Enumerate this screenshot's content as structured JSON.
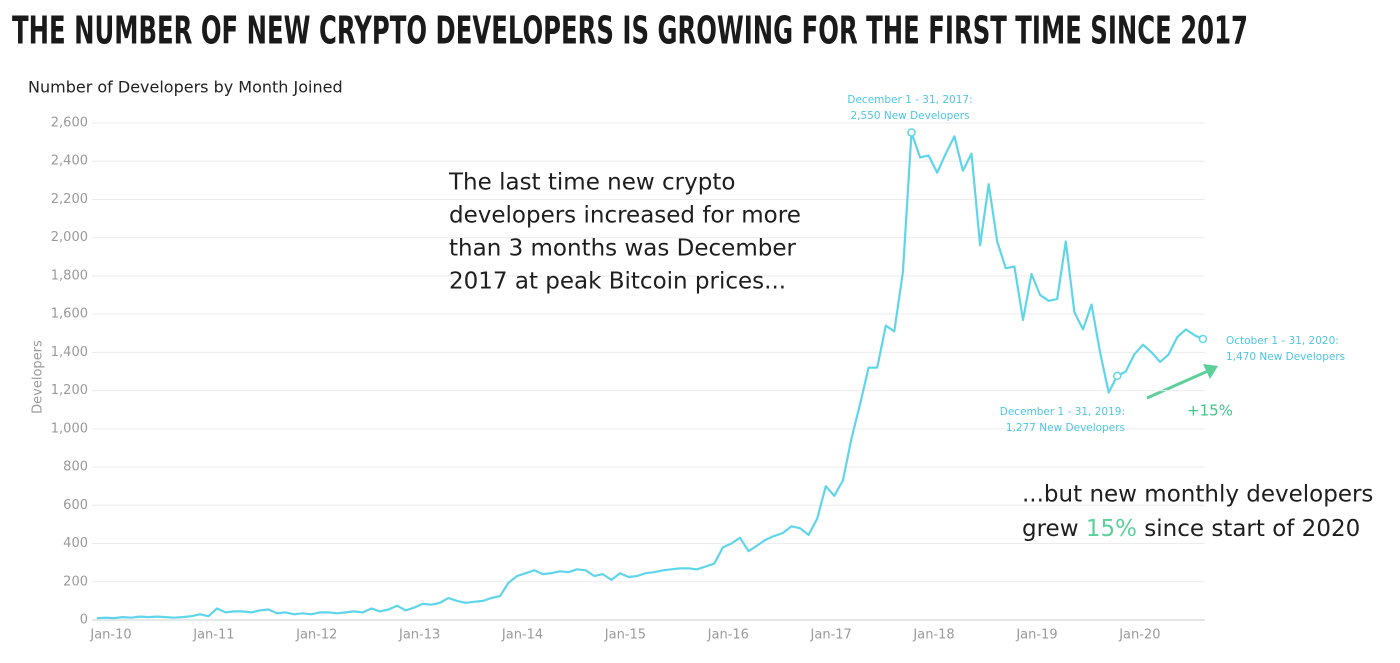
{
  "chart_data": {
    "type": "line",
    "title": "THE NUMBER OF NEW CRYPTO DEVELOPERS IS GROWING FOR THE FIRST TIME SINCE 2017",
    "subtitle": "Number of Developers by Month Joined",
    "y_label": "Developers",
    "color": "#5fd5ea",
    "categories": [
      "Jan-10",
      null,
      null,
      null,
      null,
      null,
      null,
      null,
      null,
      null,
      null,
      null,
      "Jan-11",
      null,
      null,
      null,
      null,
      null,
      null,
      null,
      null,
      null,
      null,
      null,
      "Jan-12",
      null,
      null,
      null,
      null,
      null,
      null,
      null,
      null,
      null,
      null,
      null,
      "Jan-13",
      null,
      null,
      null,
      null,
      null,
      null,
      null,
      null,
      null,
      null,
      null,
      "Jan-14",
      null,
      null,
      null,
      null,
      null,
      null,
      null,
      null,
      null,
      null,
      null,
      "Jan-15",
      null,
      null,
      null,
      null,
      null,
      null,
      null,
      null,
      null,
      null,
      null,
      "Jan-16",
      null,
      null,
      null,
      null,
      null,
      null,
      null,
      null,
      null,
      null,
      null,
      "Jan-17",
      null,
      null,
      null,
      null,
      null,
      null,
      null,
      null,
      null,
      null,
      null,
      "Jan-18",
      null,
      null,
      null,
      null,
      null,
      null,
      null,
      null,
      null,
      null,
      null,
      "Jan-19",
      null,
      null,
      null,
      null,
      null,
      null,
      null,
      null,
      null,
      null,
      null,
      "Jan-20",
      null,
      null,
      null,
      null,
      null,
      null,
      null,
      null,
      null
    ],
    "values": [
      10,
      12,
      10,
      15,
      12,
      18,
      15,
      18,
      15,
      12,
      15,
      20,
      30,
      20,
      60,
      40,
      45,
      45,
      40,
      50,
      55,
      35,
      40,
      30,
      35,
      30,
      40,
      40,
      35,
      40,
      45,
      40,
      60,
      45,
      55,
      75,
      50,
      65,
      85,
      80,
      90,
      115,
      100,
      90,
      95,
      100,
      115,
      125,
      195,
      230,
      245,
      260,
      240,
      245,
      255,
      250,
      265,
      260,
      230,
      240,
      210,
      245,
      225,
      230,
      245,
      250,
      260,
      265,
      270,
      270,
      265,
      280,
      295,
      380,
      400,
      430,
      360,
      390,
      420,
      440,
      455,
      490,
      480,
      445,
      530,
      700,
      650,
      730,
      950,
      1130,
      1320,
      1320,
      1540,
      1510,
      1820,
      2550,
      2420,
      2430,
      2340,
      2440,
      2530,
      2350,
      2440,
      1960,
      2280,
      1980,
      1840,
      1850,
      1570,
      1810,
      1700,
      1670,
      1680,
      1980,
      1610,
      1520,
      1650,
      1400,
      1190,
      1277,
      1300,
      1390,
      1440,
      1400,
      1350,
      1390,
      1480,
      1520,
      1490,
      1470
    ],
    "ylim": [
      0,
      2600
    ],
    "yticks": [
      0,
      200,
      400,
      600,
      800,
      {
        "value": 1000,
        "label": "1,000"
      },
      {
        "value": 1200,
        "label": "1,200"
      },
      {
        "value": 1400,
        "label": "1,400"
      },
      {
        "value": 1600,
        "label": "1,600"
      },
      {
        "value": 1800,
        "label": "1,800"
      },
      {
        "value": 2000,
        "label": "2,000"
      },
      {
        "value": 2200,
        "label": "2,200"
      },
      {
        "value": 2400,
        "label": "2,400"
      },
      {
        "value": 2600,
        "label": "2,600"
      }
    ],
    "grid": true,
    "annotations": [
      {
        "lines": [
          "December 1 - 31, 2017:",
          "2,550 New Developers"
        ]
      },
      {
        "lines": [
          "December 1 - 31, 2019:",
          "1,277 New Developers"
        ]
      },
      {
        "lines": [
          "October 1 - 31, 2020:",
          "1,470 New Developers"
        ]
      }
    ],
    "change_label": "+15%",
    "note_left": [
      "The last time new crypto",
      "developers increased for more",
      "than 3 months was December",
      "2017 at peak Bitcoin prices..."
    ],
    "note_right": {
      "line1": "...but new monthly developers",
      "line2_start": "grew ",
      "line2_highlight": "15%",
      "line2_end": " since start of 2020"
    }
  }
}
